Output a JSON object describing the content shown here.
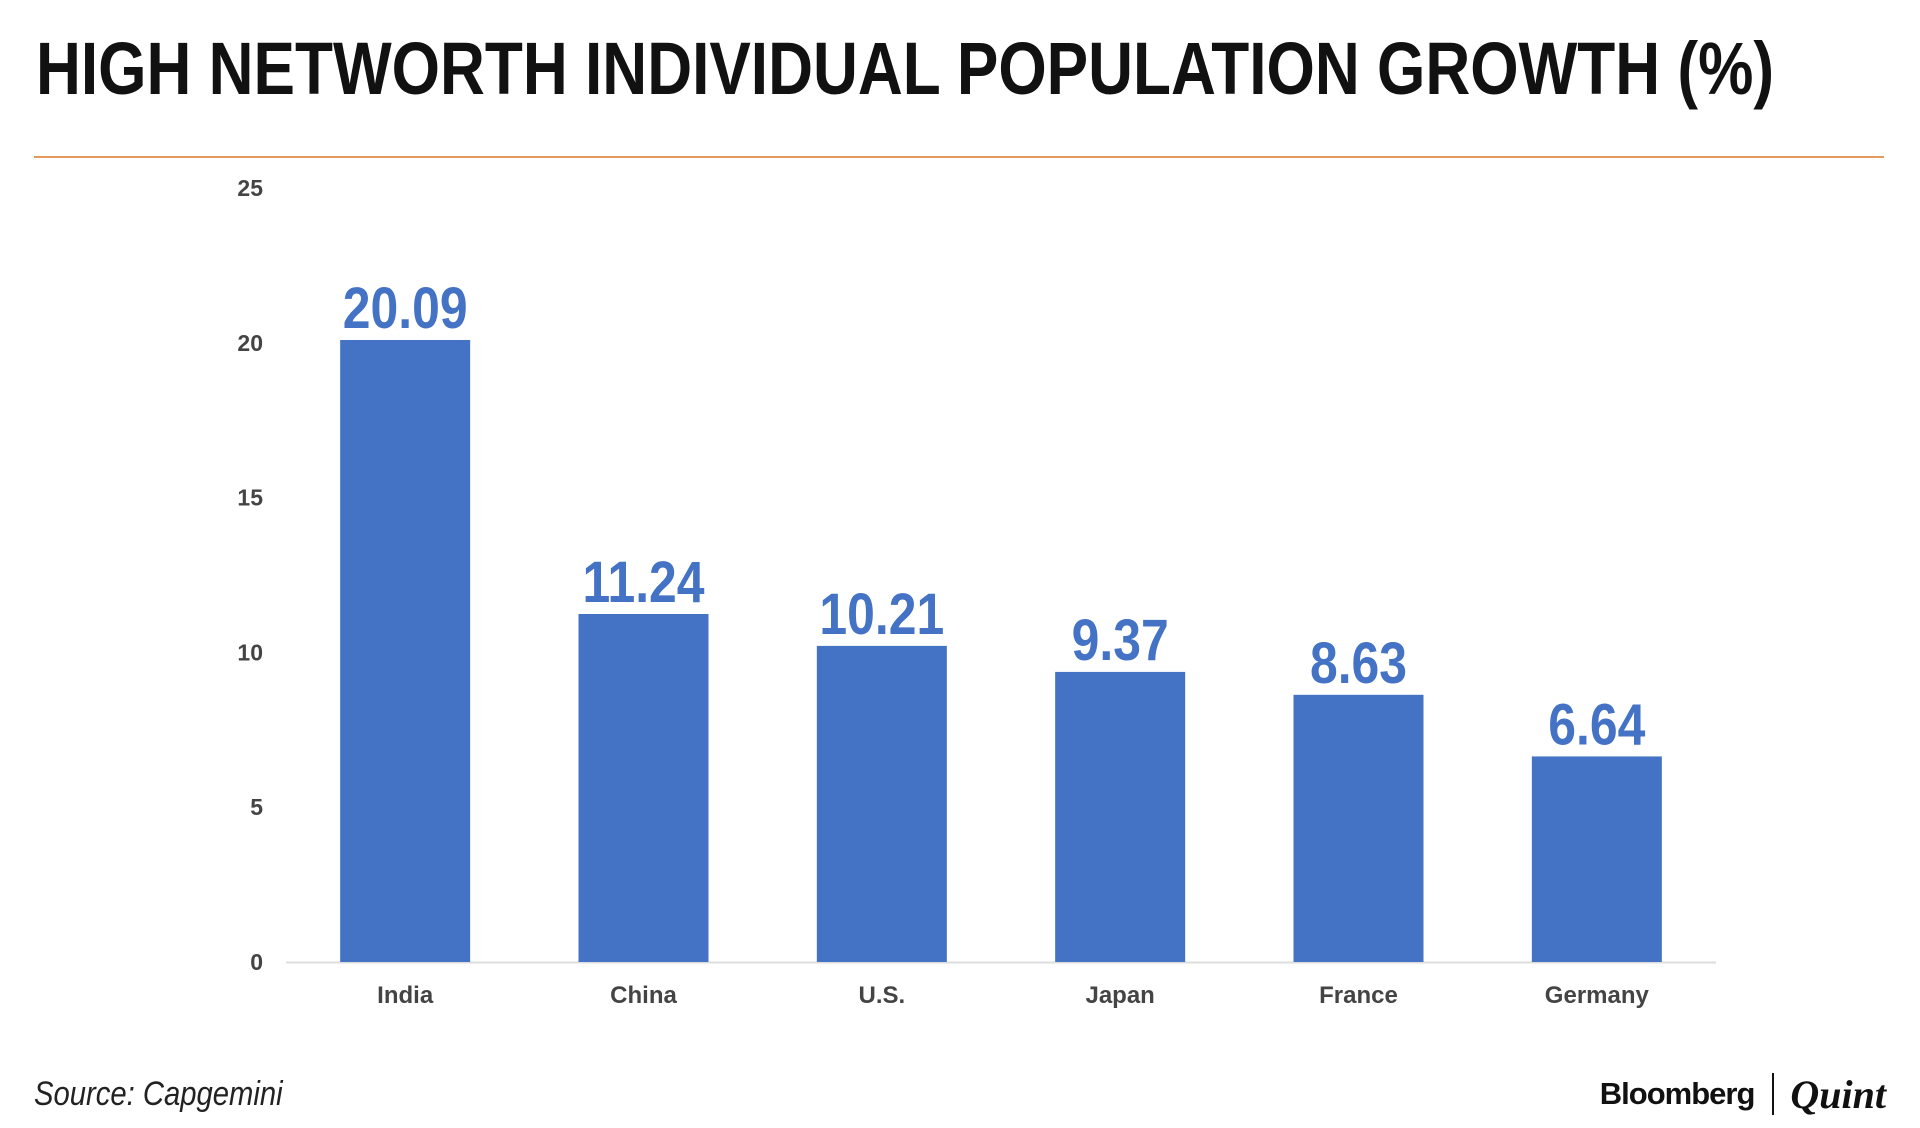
{
  "header": {
    "title": "HIGH NETWORTH INDIVIDUAL POPULATION GROWTH (%)"
  },
  "footer": {
    "source": "Source: Capgemini",
    "brand_primary": "Bloomberg",
    "brand_secondary": "Quint"
  },
  "colors": {
    "bar": "#4472c4",
    "value_label": "#4472c4",
    "rule": "#e39a5c",
    "axis_text": "#444444"
  },
  "chart_data": {
    "type": "bar",
    "categories": [
      "India",
      "China",
      "U.S.",
      "Japan",
      "France",
      "Germany"
    ],
    "values": [
      20.09,
      11.24,
      10.21,
      9.37,
      8.63,
      6.64
    ],
    "value_labels": [
      "20.09",
      "11.24",
      "10.21",
      "9.37",
      "8.63",
      "6.64"
    ],
    "y_ticks": [
      0,
      5,
      10,
      15,
      20,
      25
    ],
    "ylim": [
      0,
      25
    ],
    "grid": false,
    "legend": "none"
  }
}
